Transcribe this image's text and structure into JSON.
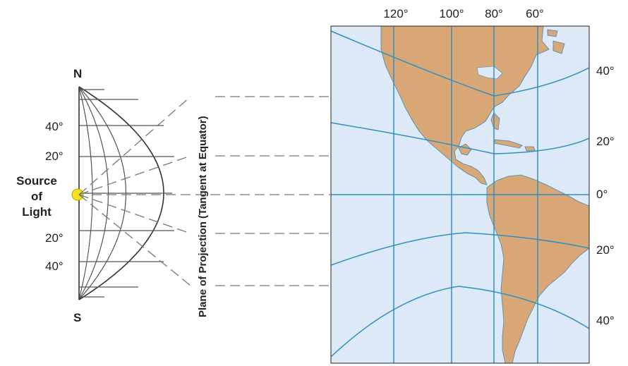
{
  "globe": {
    "north_label": "N",
    "south_label": "S",
    "lat_labels_north": [
      "40°",
      "20°"
    ],
    "lat_labels_south": [
      "20°",
      "40°"
    ]
  },
  "light_source": {
    "label_lines": [
      "Source",
      "of",
      "Light"
    ],
    "color": "#f4e21c"
  },
  "plane": {
    "label": "Plane of Projection (Tangent at Equator)"
  },
  "map": {
    "longitude_labels": [
      "120°",
      "100°",
      "80°",
      "60°"
    ],
    "latitude_labels": [
      "40°",
      "20°",
      "0°",
      "20°",
      "40°"
    ],
    "ocean_color": "#dde9f6",
    "land_color": "#d9a675",
    "grid_color": "#2f8fc0"
  }
}
